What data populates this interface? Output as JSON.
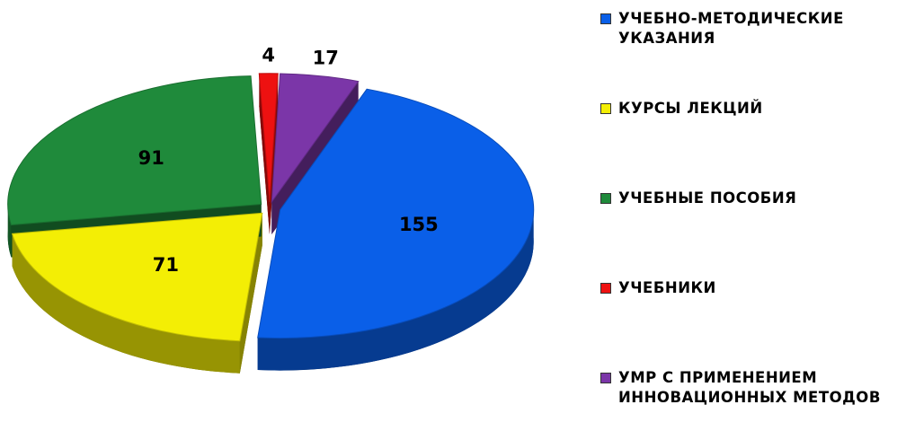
{
  "chart_data": {
    "type": "pie",
    "categories": [
      "УЧЕБНО-МЕТОДИЧЕСКИЕ УКАЗАНИЯ",
      "КУРСЫ ЛЕКЦИЙ",
      "УЧЕБНЫЕ ПОСОБИЯ",
      "УЧЕБНИКИ",
      "УМР С ПРИМЕНЕНИЕМ ИННОВАЦИОННЫХ МЕТОДОВ"
    ],
    "values": [
      155,
      71,
      91,
      4,
      17
    ],
    "colors": [
      "#0a5fe8",
      "#f3ee05",
      "#1f8a3b",
      "#ee1111",
      "#7b36a8"
    ],
    "legend": "right"
  }
}
